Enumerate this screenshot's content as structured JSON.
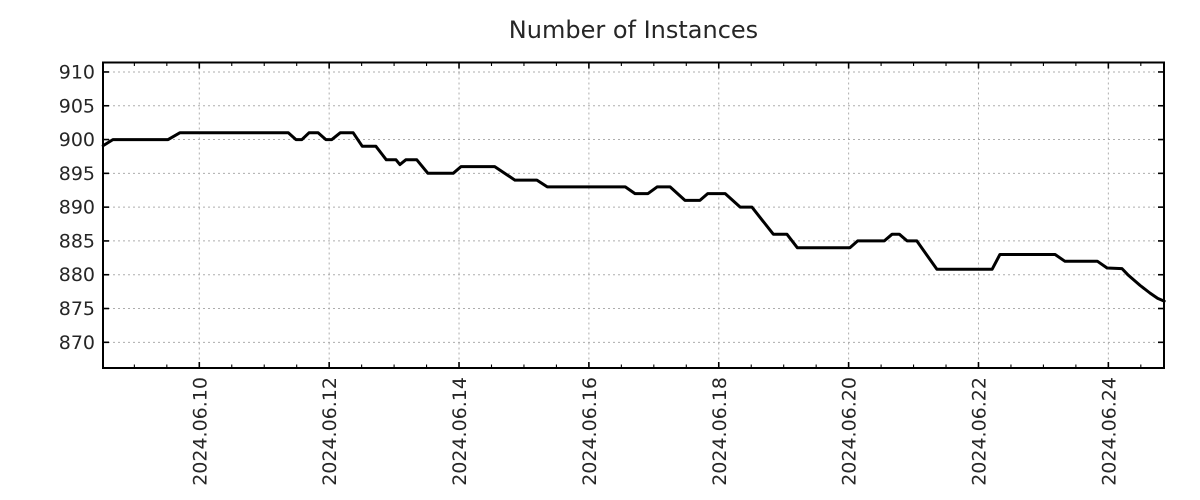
{
  "chart_data": {
    "type": "line",
    "title": "Number of Instances",
    "grid": true,
    "legend": "none",
    "line_color": "#000000",
    "grid_color": "#adadad",
    "axis_color": "#000000",
    "text_color": "#262626",
    "background": "#ffffff",
    "y_axis": {
      "ticks": [
        870,
        875,
        880,
        885,
        890,
        895,
        900,
        905,
        910
      ],
      "range": [
        866.2,
        911.4
      ]
    },
    "x_axis": {
      "day_zero": "2024.06.08",
      "tick_labels": [
        "2024.06.10",
        "2024.06.12",
        "2024.06.14",
        "2024.06.16",
        "2024.06.18",
        "2024.06.20",
        "2024.06.22",
        "2024.06.24"
      ],
      "tick_days": [
        2,
        4,
        6,
        8,
        10,
        12,
        14,
        16
      ],
      "minor_tick_interval_days": 0.5,
      "range_days": [
        0.517,
        16.857
      ]
    },
    "series": [
      {
        "name": "instances",
        "color": "#000000",
        "points": [
          [
            0.52,
            899.1
          ],
          [
            0.67,
            900
          ],
          [
            1.52,
            900
          ],
          [
            1.7,
            901
          ],
          [
            3.37,
            901
          ],
          [
            3.49,
            900
          ],
          [
            3.58,
            900
          ],
          [
            3.69,
            901
          ],
          [
            3.83,
            901
          ],
          [
            3.95,
            900
          ],
          [
            4.04,
            900
          ],
          [
            4.17,
            901
          ],
          [
            4.37,
            901
          ],
          [
            4.51,
            899
          ],
          [
            4.72,
            899
          ],
          [
            4.88,
            897
          ],
          [
            5.03,
            897
          ],
          [
            5.09,
            896.3
          ],
          [
            5.18,
            897
          ],
          [
            5.35,
            897
          ],
          [
            5.52,
            895
          ],
          [
            5.91,
            895
          ],
          [
            6.03,
            896
          ],
          [
            6.55,
            896
          ],
          [
            6.86,
            894
          ],
          [
            7.2,
            894
          ],
          [
            7.36,
            893
          ],
          [
            8.56,
            893
          ],
          [
            8.71,
            892
          ],
          [
            8.91,
            892
          ],
          [
            9.05,
            893
          ],
          [
            9.25,
            893
          ],
          [
            9.48,
            891
          ],
          [
            9.71,
            891
          ],
          [
            9.83,
            892
          ],
          [
            10.1,
            892
          ],
          [
            10.33,
            890
          ],
          [
            10.51,
            890
          ],
          [
            10.84,
            886
          ],
          [
            11.05,
            886
          ],
          [
            11.21,
            884
          ],
          [
            12.02,
            884
          ],
          [
            12.14,
            885
          ],
          [
            12.55,
            885
          ],
          [
            12.67,
            886
          ],
          [
            12.78,
            886
          ],
          [
            12.9,
            885
          ],
          [
            13.05,
            885
          ],
          [
            13.36,
            880.8
          ],
          [
            14.21,
            880.8
          ],
          [
            14.33,
            883
          ],
          [
            15.18,
            883
          ],
          [
            15.33,
            882
          ],
          [
            15.83,
            882
          ],
          [
            15.98,
            881
          ],
          [
            16.21,
            880.9
          ],
          [
            16.3,
            880
          ],
          [
            16.49,
            878.4
          ],
          [
            16.64,
            877.3
          ],
          [
            16.76,
            876.5
          ],
          [
            16.86,
            876.1
          ]
        ]
      }
    ]
  }
}
